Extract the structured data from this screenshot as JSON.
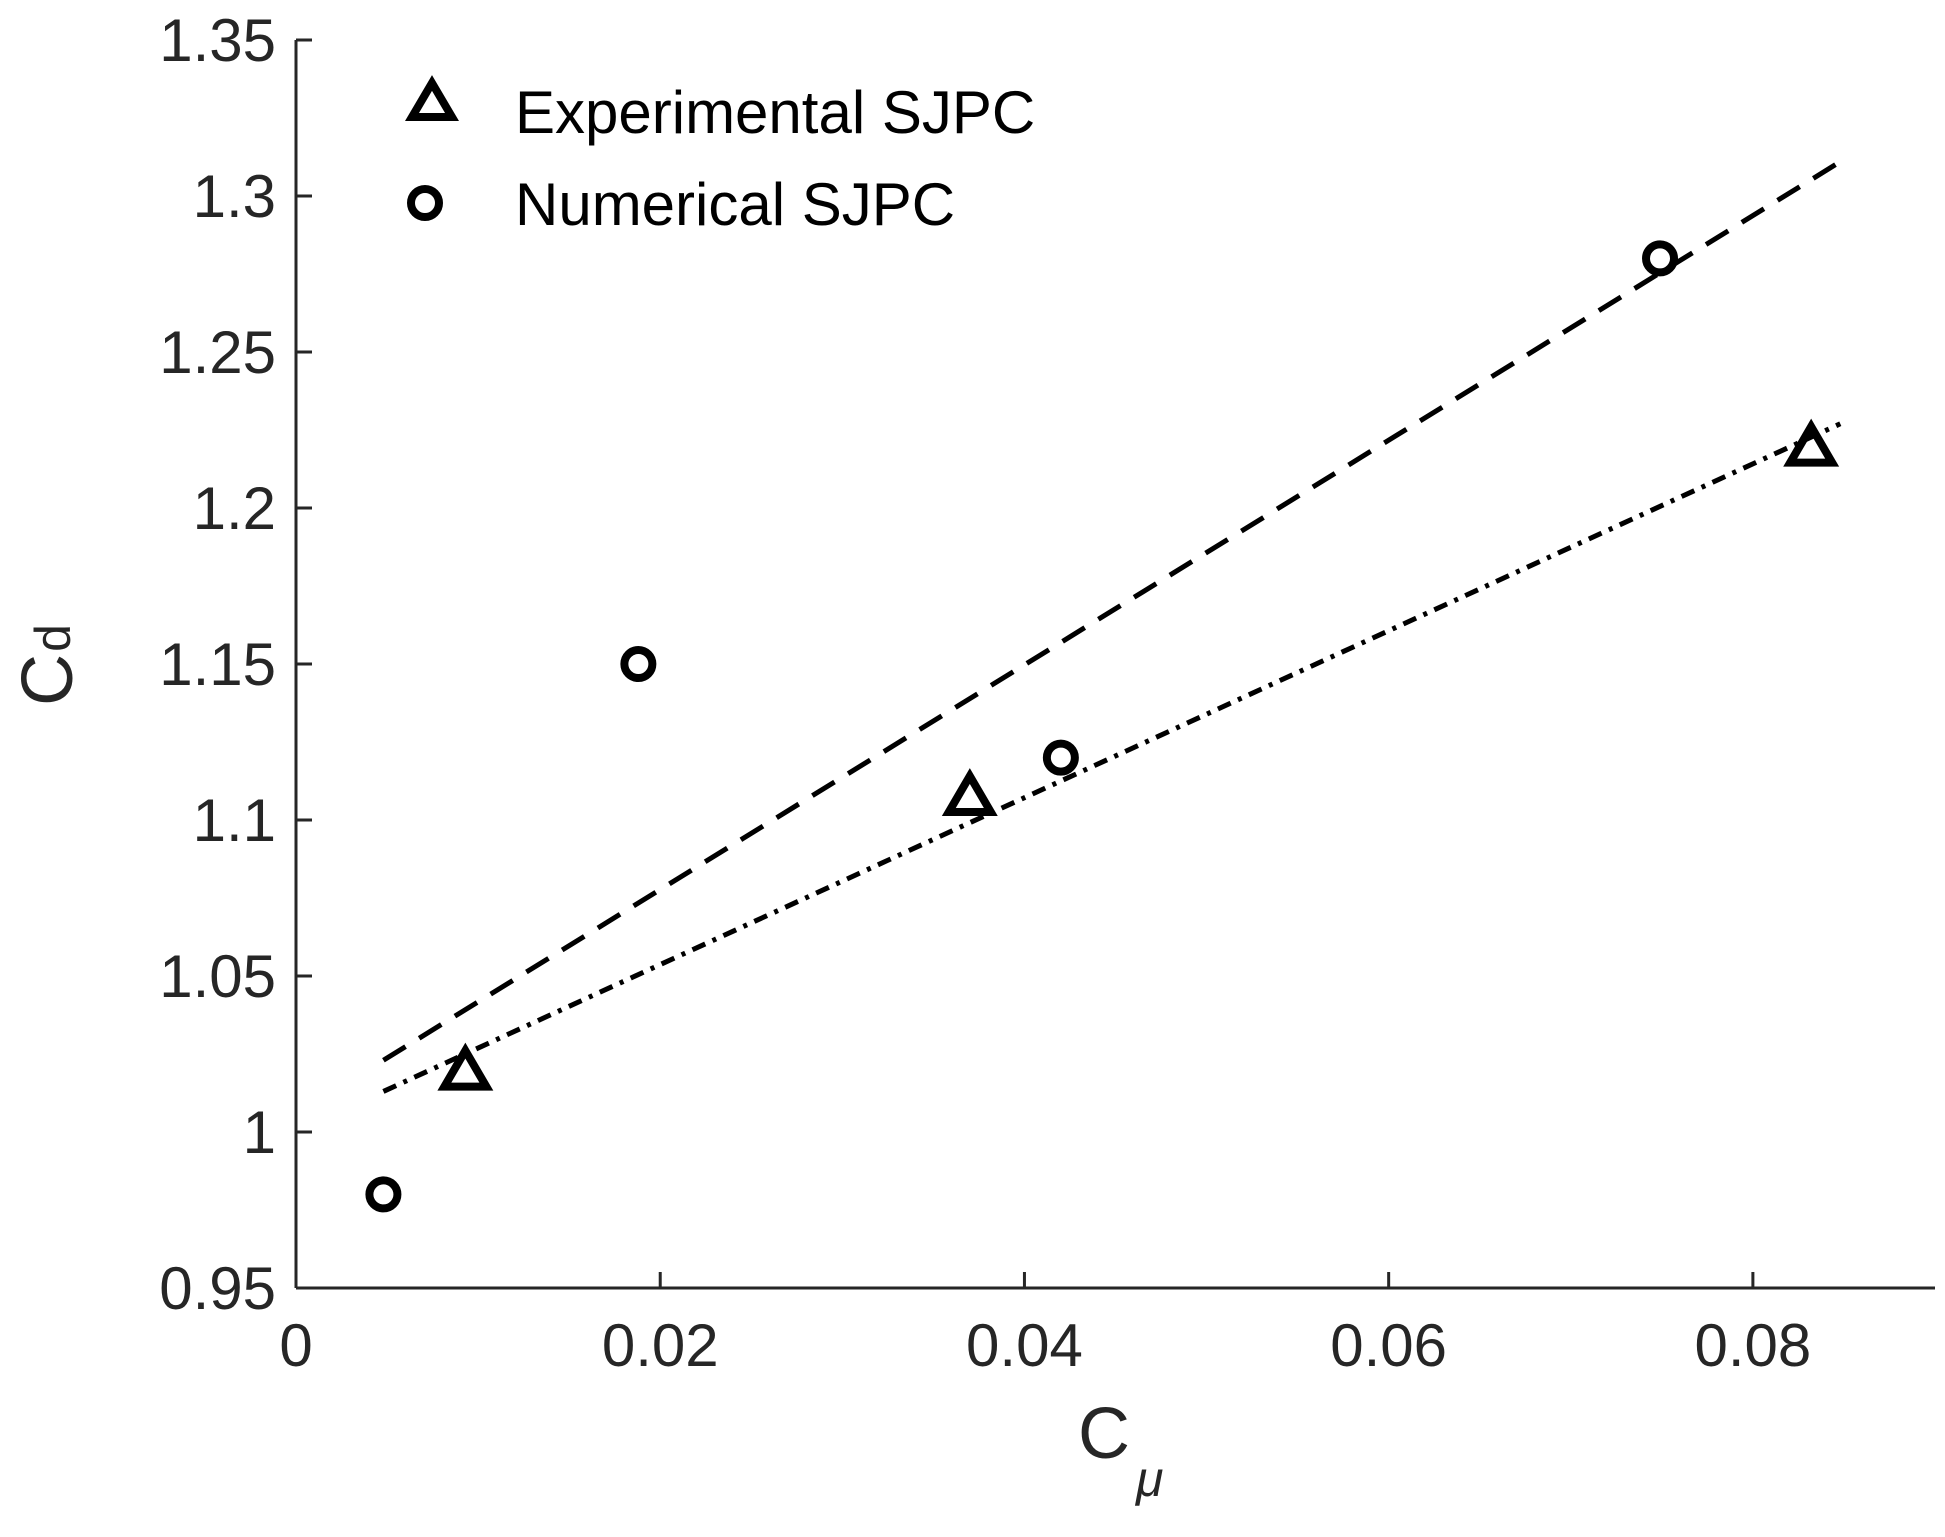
{
  "chart_data": {
    "type": "scatter",
    "title": "",
    "xlabel": {
      "main": "C",
      "sub": "μ"
    },
    "ylabel": {
      "main": "C",
      "sub": "d"
    },
    "xlim": [
      0,
      0.09
    ],
    "ylim": [
      0.95,
      1.35
    ],
    "grid": false,
    "legend_position": "top-left",
    "xticks": [
      0,
      0.02,
      0.04,
      0.06,
      0.08
    ],
    "xtick_labels": [
      "0",
      "0.02",
      "0.04",
      "0.06",
      "0.08"
    ],
    "yticks": [
      0.95,
      1.0,
      1.05,
      1.1,
      1.15,
      1.2,
      1.25,
      1.3,
      1.35
    ],
    "ytick_labels": [
      "0.95",
      "1",
      "1.05",
      "1.1",
      "1.15",
      "1.2",
      "1.25",
      "1.3",
      "1.35"
    ],
    "series": [
      {
        "name": "Experimental SJPC",
        "marker": "triangle",
        "x": [
          0.0093,
          0.037,
          0.0832
        ],
        "y": [
          1.02,
          1.108,
          1.22
        ]
      },
      {
        "name": "Numerical SJPC",
        "marker": "circle",
        "x": [
          0.0048,
          0.0188,
          0.042,
          0.0749
        ],
        "y": [
          0.98,
          1.15,
          1.12,
          1.28
        ]
      }
    ],
    "fit_lines": [
      {
        "name": "Numerical fit",
        "style": "dashed",
        "x": [
          0.0048,
          0.0848
        ],
        "y": [
          1.023,
          1.311
        ]
      },
      {
        "name": "Experimental fit",
        "style": "dash-dot",
        "x": [
          0.0048,
          0.0848
        ],
        "y": [
          1.013,
          1.227
        ]
      }
    ],
    "colors": {
      "axis": "#262626",
      "data": "#000000",
      "background": "#ffffff"
    }
  }
}
